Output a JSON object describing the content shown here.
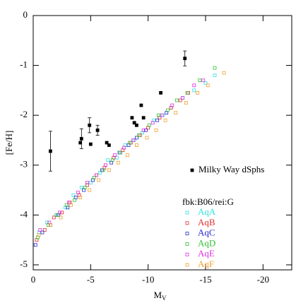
{
  "chart_data": {
    "type": "scatter",
    "xlabel": "M",
    "xlabel_sub": "V",
    "ylabel": "[Fe/H]",
    "xlim": [
      0,
      -22.5
    ],
    "ylim": [
      -5.1,
      0
    ],
    "xticks": [
      0,
      -5,
      -10,
      -15,
      -20
    ],
    "yticks": [
      0,
      -1,
      -2,
      -3,
      -4,
      -5
    ],
    "legend_title": "fbk:B06/rei:G",
    "series": [
      {
        "name": "Milky Way dSphs",
        "color": "#000000",
        "marker": "filled",
        "x": [
          -1.5,
          -4.1,
          -4.2,
          -4.9,
          -5.0,
          -5.6,
          -6.4,
          -6.6,
          -8.6,
          -8.8,
          -9.0,
          -9.4,
          -9.6,
          -11.1,
          -13.2
        ],
        "values": [
          -2.72,
          -2.55,
          -2.47,
          -2.2,
          -2.58,
          -2.3,
          -2.55,
          -2.6,
          -2.05,
          -2.15,
          -2.2,
          -1.8,
          -2.05,
          -1.55,
          -0.86
        ],
        "errors": [
          0.4,
          null,
          0.2,
          0.15,
          null,
          0.1,
          null,
          null,
          null,
          null,
          null,
          null,
          null,
          null,
          0.15
        ]
      },
      {
        "name": "AqA",
        "color": "#33e0e0",
        "marker": "open",
        "x": [
          -0.5,
          -1.2,
          -2,
          -2.8,
          -3.5,
          -4.2,
          -5,
          -5.8,
          -6.5,
          -7.3,
          -8,
          -8.8,
          -9.5,
          -10.5,
          -11.3,
          -12,
          -13,
          -14,
          -15,
          -15.8
        ],
        "values": [
          -4.35,
          -4.15,
          -4.0,
          -3.85,
          -3.6,
          -3.45,
          -3.35,
          -3.15,
          -2.9,
          -2.85,
          -2.6,
          -2.5,
          -2.35,
          -2.1,
          -2.0,
          -1.85,
          -1.65,
          -1.5,
          -1.35,
          -1.2
        ]
      },
      {
        "name": "AqB",
        "color": "#e03030",
        "marker": "open",
        "x": [
          -0.3,
          -1,
          -1.8,
          -2.5,
          -3.2,
          -4,
          -4.7,
          -5.5,
          -6.2,
          -7,
          -7.8,
          -8.5,
          -9.3,
          -10,
          -11,
          -12,
          -12.8,
          -13.5
        ],
        "values": [
          -4.5,
          -4.3,
          -4.05,
          -3.95,
          -3.75,
          -3.6,
          -3.4,
          -3.2,
          -3.05,
          -2.85,
          -2.7,
          -2.55,
          -2.4,
          -2.25,
          -2.05,
          -1.85,
          -1.7,
          -1.55
        ]
      },
      {
        "name": "AqC",
        "color": "#2a2ad0",
        "marker": "open",
        "x": [
          -0.2,
          -0.8,
          -1.5,
          -2.2,
          -3,
          -3.7,
          -4.4,
          -5.2,
          -6,
          -6.8,
          -7.5,
          -8.3,
          -9,
          -9.8,
          -10.8,
          -11.6
        ],
        "values": [
          -4.6,
          -4.35,
          -4.2,
          -4.0,
          -3.85,
          -3.65,
          -3.5,
          -3.3,
          -3.1,
          -2.95,
          -2.75,
          -2.6,
          -2.45,
          -2.3,
          -2.1,
          -1.95
        ]
      },
      {
        "name": "AqD",
        "color": "#30c030",
        "marker": "open",
        "x": [
          -0.4,
          -1.3,
          -2.1,
          -2.9,
          -3.6,
          -4.5,
          -5.3,
          -6.1,
          -6.9,
          -7.6,
          -8.4,
          -9.2,
          -10.1,
          -10.9,
          -11.7,
          -12.5,
          -13.4,
          -14.5,
          -15.8
        ],
        "values": [
          -4.45,
          -4.2,
          -4.0,
          -3.8,
          -3.7,
          -3.45,
          -3.25,
          -3.1,
          -2.9,
          -2.75,
          -2.55,
          -2.4,
          -2.2,
          -2.0,
          -1.9,
          -1.7,
          -1.55,
          -1.3,
          -1.05
        ]
      },
      {
        "name": "AqE",
        "color": "#e030e0",
        "marker": "open",
        "x": [
          -0.6,
          -1.4,
          -2.3,
          -3.1,
          -3.9,
          -4.7,
          -5.5,
          -6.3,
          -7.1,
          -7.9,
          -8.7,
          -9.6,
          -10.4,
          -11.2,
          -12.1,
          -13,
          -14,
          -14.8
        ],
        "values": [
          -4.3,
          -4.15,
          -3.95,
          -3.75,
          -3.55,
          -3.35,
          -3.2,
          -3.0,
          -2.8,
          -2.65,
          -2.5,
          -2.3,
          -2.15,
          -2.0,
          -1.8,
          -1.65,
          -1.4,
          -1.3
        ]
      },
      {
        "name": "AqF",
        "color": "#f0a030",
        "marker": "open",
        "x": [
          -0.5,
          -1.5,
          -2.4,
          -3.3,
          -4.1,
          -4.9,
          -5.7,
          -6.6,
          -7.4,
          -8.2,
          -9,
          -9.9,
          -10.7,
          -11.5,
          -12.4,
          -13.3,
          -14.3,
          -15.2,
          -16.6
        ],
        "values": [
          -4.4,
          -4.2,
          -4.05,
          -3.8,
          -3.65,
          -3.5,
          -3.3,
          -3.1,
          -2.95,
          -2.8,
          -2.6,
          -2.45,
          -2.3,
          -2.1,
          -1.95,
          -1.75,
          -1.55,
          -1.4,
          -1.15
        ]
      }
    ]
  }
}
